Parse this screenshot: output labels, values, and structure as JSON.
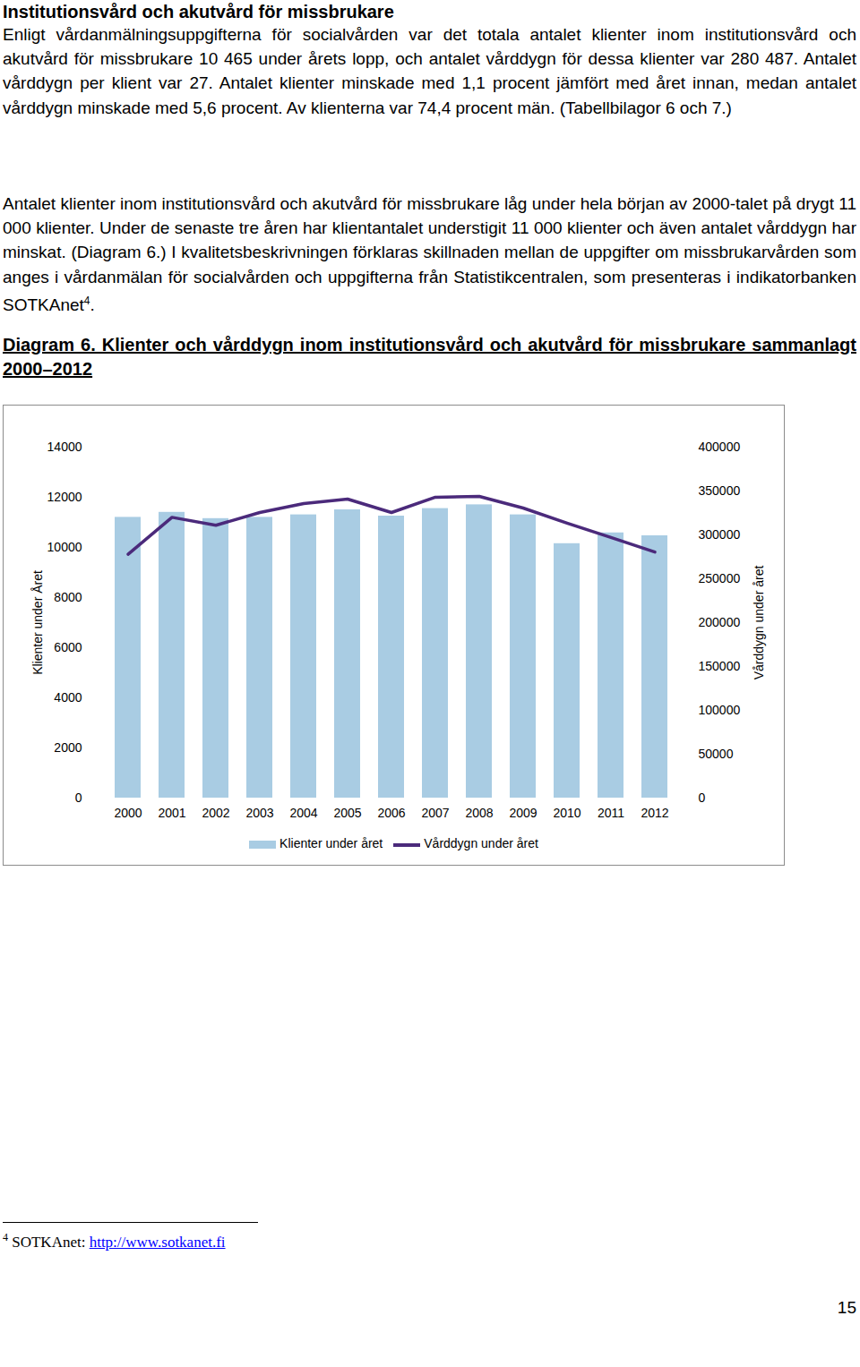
{
  "heading": "Institutionsvård och akutvård för missbrukare",
  "paragraphs": [
    {
      "text": "Enligt vårdanmälningsuppgifterna för socialvården var det totala antalet klienter inom institutionsvård och akutvård för missbrukare 10 465 under årets lopp, och antalet vårddygn för dessa klienter var 280 487. Antalet vårddygn per klient var 27. Antalet klienter minskade med 1,1 procent jämfört med året innan, medan antalet vårddygn minskade med 5,6 procent. Av klienterna var 74,4 procent män. (Tabellbilagor 6 och 7.)"
    },
    {
      "text": "Antalet klienter inom institutionsvård och akutvård för missbrukare låg under hela början av 2000-talet på drygt 11 000 klienter. Under de senaste tre åren har klientantalet understigit 11 000 klienter och även antalet vårddygn har minskat. (Diagram 6.) I kvalitetsbeskrivningen förklaras skillnaden mellan de uppgifter om missbrukarvården som anges i vårdanmälan för socialvården och uppgifterna från Statistikcentralen, som presenteras i indikatorbanken SOTKAnet",
      "note": "4",
      "after": "."
    }
  ],
  "chart_data": {
    "type": "bar",
    "title": "Diagram 6. Klienter och vårddygn inom institutionsvård och akutvård för missbrukare sammanlagt 2000–2012",
    "categories": [
      "2000",
      "2001",
      "2002",
      "2003",
      "2004",
      "2005",
      "2006",
      "2007",
      "2008",
      "2009",
      "2010",
      "2011",
      "2012"
    ],
    "series": [
      {
        "name": "Klienter under året",
        "type": "bar",
        "color": "#a9cce3",
        "values": [
          11200,
          11400,
          11150,
          11200,
          11300,
          11500,
          11250,
          11550,
          11700,
          11300,
          10150,
          10580,
          10465
        ]
      },
      {
        "name": "Vårddygn under året",
        "type": "line",
        "axis": "y2",
        "color": "#4b2a7b",
        "values": [
          278000,
          320000,
          311000,
          325500,
          335700,
          340800,
          325500,
          342900,
          343900,
          330600,
          313300,
          297100,
          280487
        ]
      }
    ],
    "y_label": "Klienter under Året",
    "y2_label": "Vårddygn under året",
    "ylim": [
      0,
      14000
    ],
    "yticks": [
      0,
      2000,
      4000,
      6000,
      8000,
      10000,
      12000,
      14000
    ],
    "y2lim": [
      0,
      400000
    ],
    "y2ticks": [
      0,
      50000,
      100000,
      150000,
      200000,
      250000,
      300000,
      350000,
      400000
    ],
    "grid": false,
    "legend": "bottom"
  },
  "footnote": {
    "mark": "4",
    "text": "SOTKAnet: ",
    "link": "http://www.sotkanet.fi"
  },
  "page_number": "15"
}
